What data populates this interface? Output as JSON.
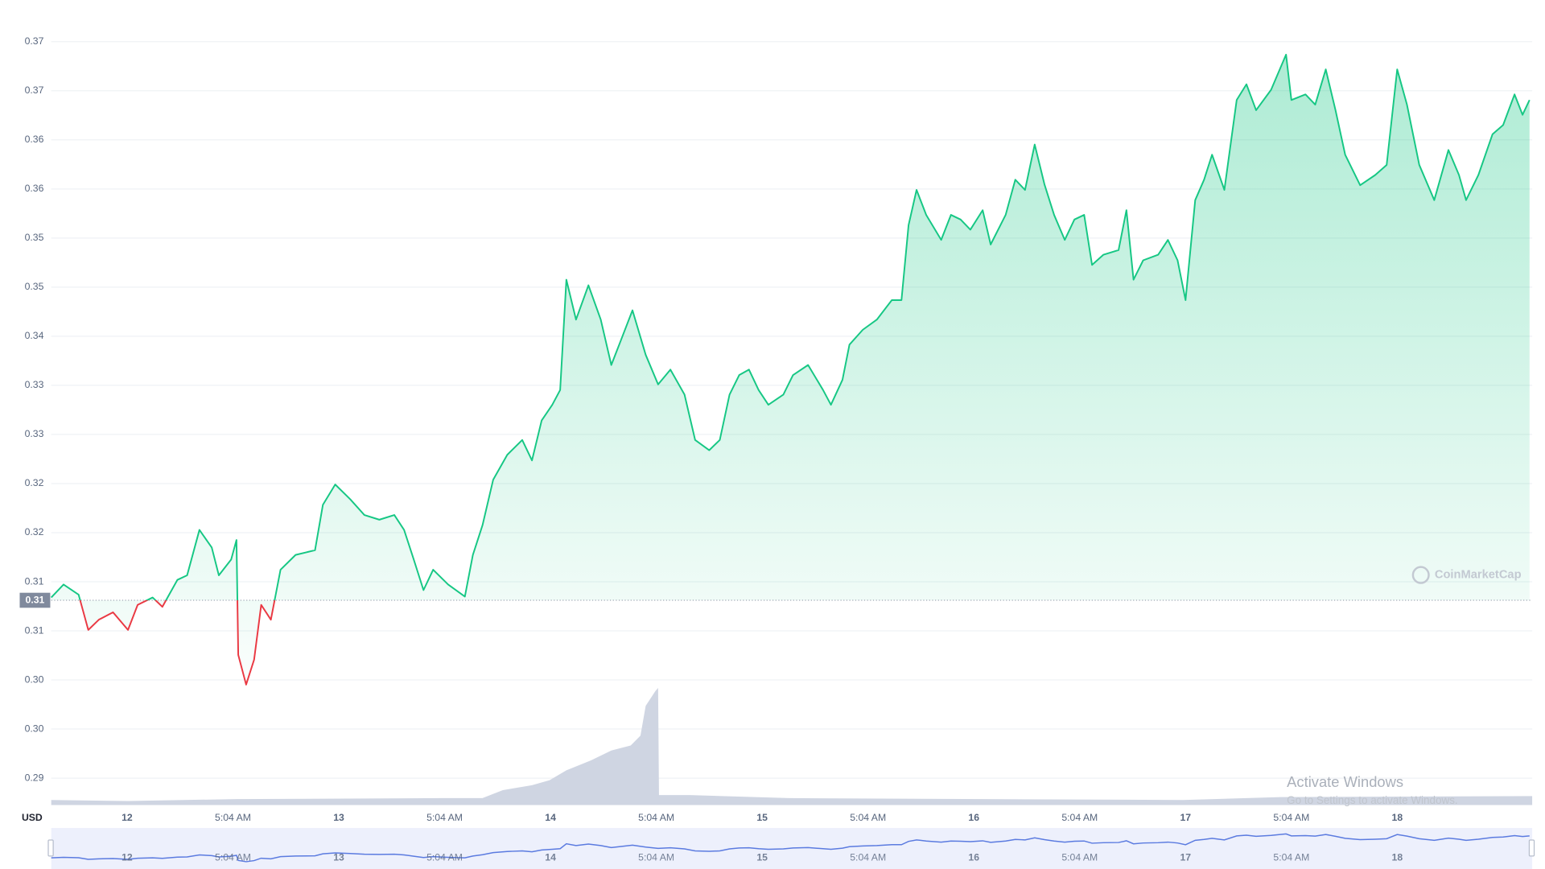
{
  "chart_data": {
    "type": "line",
    "currency_label": "USD",
    "watermark": "CoinMarketCap",
    "x": [
      -8.6,
      -7.2,
      -5.5,
      -4.4,
      -3.2,
      -1.6,
      0.1,
      1.2,
      2.9,
      4.0,
      5.7,
      6.8,
      8.2,
      9.6,
      10.4,
      11.8,
      12.4,
      12.6,
      13.5,
      14.4,
      15.2,
      16.3,
      17.4,
      19.1,
      21.3,
      22.2,
      23.6,
      25.3,
      26.9,
      28.6,
      30.3,
      31.4,
      32.5,
      33.6,
      34.7,
      36.4,
      38.3,
      39.2,
      40.3,
      41.5,
      43.1,
      44.8,
      45.9,
      47.0,
      48.2,
      49.1,
      49.8,
      50.9,
      52.3,
      53.7,
      54.9,
      56.0,
      57.3,
      58.8,
      60.2,
      61.6,
      63.2,
      64.4,
      66.0,
      67.2,
      68.3,
      69.4,
      70.5,
      71.6,
      72.7,
      74.4,
      75.5,
      77.2,
      78.9,
      79.8,
      81.1,
      81.9,
      83.4,
      85.0,
      86.7,
      87.8,
      88.6,
      89.5,
      90.6,
      92.3,
      93.4,
      94.5,
      95.6,
      97.0,
      97.9,
      99.6,
      100.7,
      101.8,
      102.9,
      104.0,
      105.1,
      106.3,
      107.4,
      108.5,
      109.4,
      110.7,
      112.4,
      113.3,
      114.1,
      115.2,
      116.9,
      118.0,
      119.1,
      120.0,
      121.1,
      122.1,
      123.0,
      124.4,
      125.8,
      126.9,
      128.0,
      129.7,
      131.4,
      132.0,
      133.6,
      134.7,
      135.9,
      137.0,
      138.1,
      139.8,
      141.5,
      142.8,
      144.0,
      145.1,
      146.5,
      148.2,
      149.8,
      151.0,
      151.8,
      153.2,
      154.8,
      156.0,
      157.3,
      158.2,
      159.0
    ],
    "series": [
      {
        "up_color": "#16c784",
        "down_color": "#ea3943",
        "values": [
          0.312,
          0.3134,
          0.3123,
          0.3085,
          0.3096,
          0.3104,
          0.3085,
          0.3112,
          0.312,
          0.311,
          0.3139,
          0.3144,
          0.3193,
          0.3174,
          0.3144,
          0.3161,
          0.3182,
          0.3058,
          0.3026,
          0.3053,
          0.3112,
          0.3096,
          0.315,
          0.3166,
          0.3171,
          0.322,
          0.3242,
          0.3226,
          0.3209,
          0.3204,
          0.3209,
          0.3193,
          0.3161,
          0.3128,
          0.315,
          0.3134,
          0.3121,
          0.3166,
          0.3198,
          0.3247,
          0.3274,
          0.329,
          0.3268,
          0.3311,
          0.3328,
          0.3344,
          0.3463,
          0.342,
          0.3457,
          0.342,
          0.3371,
          0.3398,
          0.343,
          0.3382,
          0.335,
          0.3366,
          0.3339,
          0.329,
          0.3279,
          0.329,
          0.3339,
          0.336,
          0.3366,
          0.3344,
          0.3328,
          0.3339,
          0.336,
          0.3371,
          0.3344,
          0.3328,
          0.3355,
          0.3393,
          0.3409,
          0.342,
          0.3441,
          0.3441,
          0.3522,
          0.356,
          0.3533,
          0.3506,
          0.3533,
          0.3528,
          0.3517,
          0.3538,
          0.3501,
          0.3533,
          0.3571,
          0.356,
          0.3609,
          0.3566,
          0.3533,
          0.3506,
          0.3528,
          0.3533,
          0.3479,
          0.349,
          0.3495,
          0.3538,
          0.3463,
          0.3484,
          0.349,
          0.3506,
          0.3484,
          0.3441,
          0.3549,
          0.3571,
          0.3598,
          0.356,
          0.3657,
          0.3674,
          0.3646,
          0.3668,
          0.3706,
          0.3657,
          0.3663,
          0.3652,
          0.369,
          0.3646,
          0.3598,
          0.3565,
          0.3576,
          0.3587,
          0.369,
          0.3652,
          0.3587,
          0.3549,
          0.3603,
          0.3576,
          0.3549,
          0.3576,
          0.362,
          0.363,
          0.3663,
          0.3641,
          0.3657
        ]
      }
    ],
    "reference": {
      "value": 0.3117,
      "label": "0.31"
    },
    "volume": {
      "color": "#cfd5e2",
      "x": [
        -8.6,
        0.1,
        12.4,
        35.9,
        40.3,
        42.6,
        45.9,
        47.9,
        49.8,
        52.6,
        54.9,
        57.1,
        58.2,
        58.8,
        59.9,
        60.2,
        60.3,
        63.8,
        75.0,
        97.3,
        119.7,
        130.8,
        159.3
      ],
      "values": [
        5,
        4,
        6,
        7,
        7,
        15,
        20,
        25,
        35,
        45,
        55,
        60,
        70,
        100,
        115,
        118,
        10,
        10,
        7,
        6,
        5,
        8,
        9
      ],
      "vlim": [
        0,
        800
      ]
    },
    "xlim": [
      -8.6,
      159.3
    ],
    "ylim": [
      0.2896,
      0.3752
    ],
    "xticks": [
      {
        "value": 0,
        "label": "12"
      },
      {
        "value": 12,
        "label": "5:04 AM"
      },
      {
        "value": 24,
        "label": "13"
      },
      {
        "value": 36,
        "label": "5:04 AM"
      },
      {
        "value": 48,
        "label": "14"
      },
      {
        "value": 60,
        "label": "5:04 AM"
      },
      {
        "value": 72,
        "label": "15"
      },
      {
        "value": 84,
        "label": "5:04 AM"
      },
      {
        "value": 96,
        "label": "16"
      },
      {
        "value": 108,
        "label": "5:04 AM"
      },
      {
        "value": 120,
        "label": "17"
      },
      {
        "value": 132,
        "label": "5:04 AM"
      },
      {
        "value": 144,
        "label": "18"
      }
    ],
    "yticks": [
      {
        "value": 0.2925,
        "label": "0.29"
      },
      {
        "value": 0.2978,
        "label": "0.30"
      },
      {
        "value": 0.3031,
        "label": "0.30"
      },
      {
        "value": 0.3084,
        "label": "0.31"
      },
      {
        "value": 0.3137,
        "label": "0.31"
      },
      {
        "value": 0.319,
        "label": "0.32"
      },
      {
        "value": 0.3243,
        "label": "0.32"
      },
      {
        "value": 0.3296,
        "label": "0.33"
      },
      {
        "value": 0.3349,
        "label": "0.33"
      },
      {
        "value": 0.3402,
        "label": "0.34"
      },
      {
        "value": 0.3455,
        "label": "0.35"
      },
      {
        "value": 0.3508,
        "label": "0.35"
      },
      {
        "value": 0.3561,
        "label": "0.36"
      },
      {
        "value": 0.3614,
        "label": "0.36"
      },
      {
        "value": 0.3667,
        "label": "0.37"
      },
      {
        "value": 0.372,
        "label": "0.37"
      }
    ],
    "grid": true,
    "navigator": {
      "color": "#5b7be0",
      "fill": "#edf0fc"
    }
  },
  "overlay": {
    "title": "Activate Windows",
    "subtitle": "Go to Settings to activate Windows."
  }
}
